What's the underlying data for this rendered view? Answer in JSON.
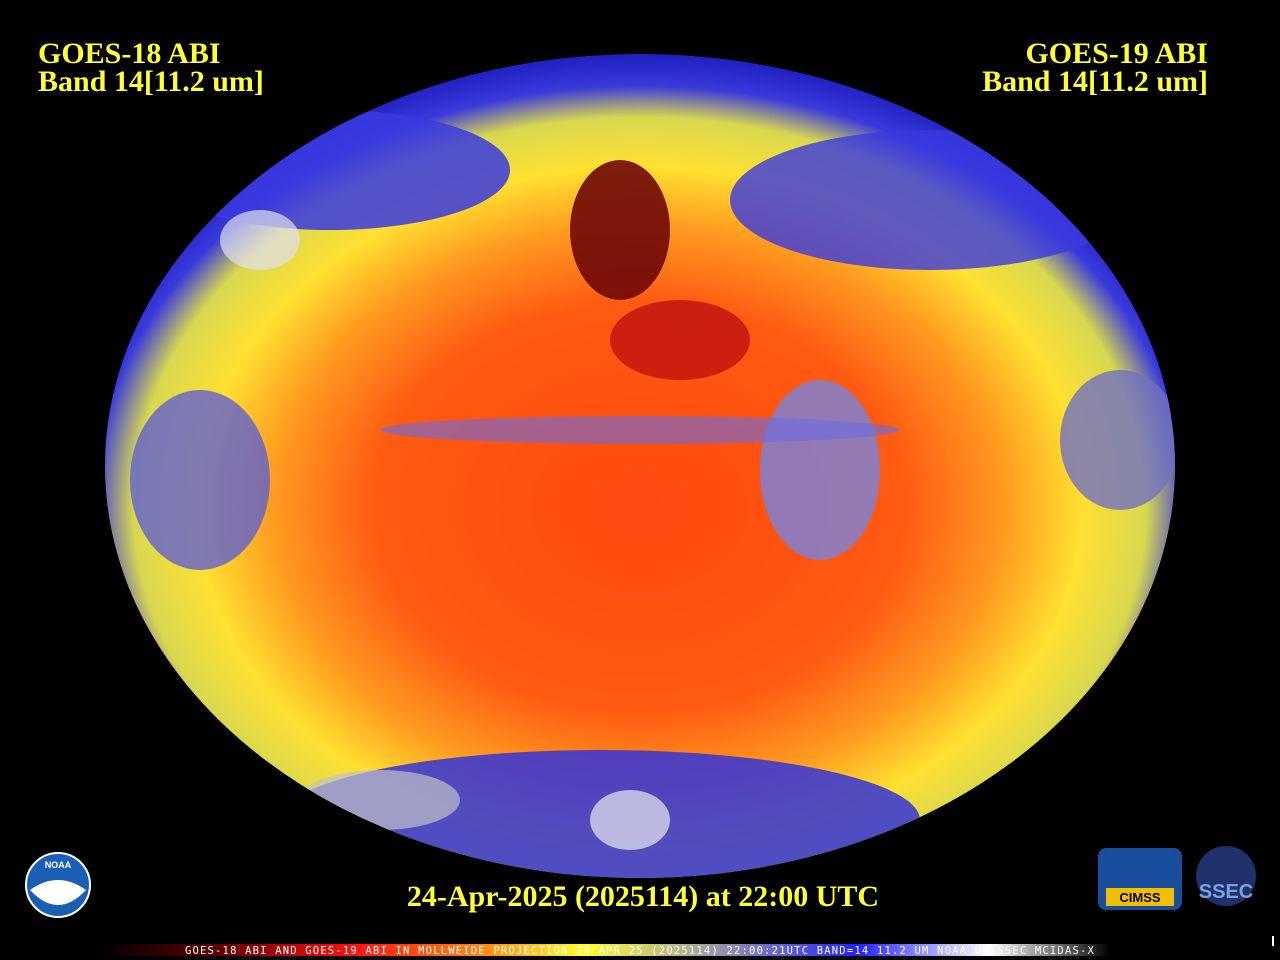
{
  "left_label": {
    "line1": "GOES-18 ABI",
    "line2": "Band 14[11.2 um]"
  },
  "right_label": {
    "line1": "GOES-19 ABI",
    "line2": "Band 14[11.2 um]"
  },
  "timestamp": "24-Apr-2025 (2025114) at 22:00 UTC",
  "footer": "GOES-18 ABI AND GOES-19 ABI IN MOLLWEIDE PROJECTION 24 APR 25 (2025114) 22:00:21UTC BAND=14 11.2 UM NOAA UW-SSEC MCIDAS-X",
  "logos": {
    "noaa": "NOAA",
    "cimss": "CIMSS",
    "ssec": "SSEC"
  }
}
